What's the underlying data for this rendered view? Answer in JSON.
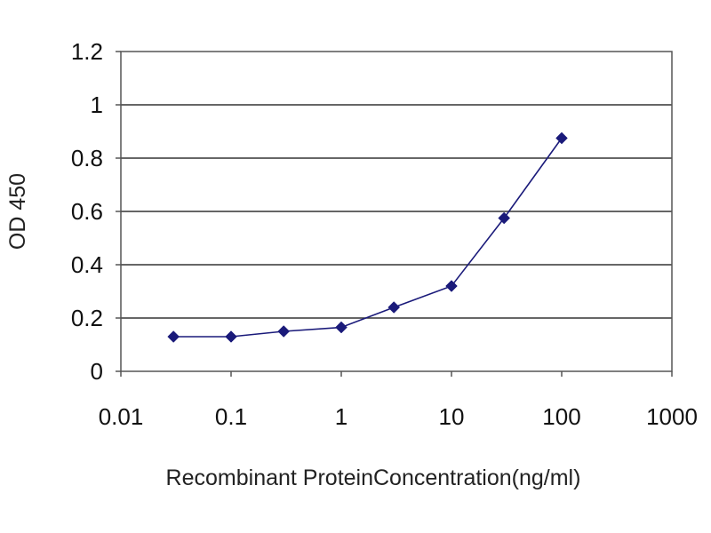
{
  "chart_data": {
    "type": "line",
    "title": "",
    "xlabel": "Recombinant ProteinConcentration(ng/ml)",
    "ylabel": "OD 450",
    "x_scale": "log",
    "xlim": [
      0.01,
      1000
    ],
    "ylim": [
      0,
      1.2
    ],
    "x_ticks": [
      0.01,
      0.1,
      1,
      10,
      100,
      1000
    ],
    "x_tick_labels": [
      "0.01",
      "0.1",
      "1",
      "10",
      "100",
      "1000"
    ],
    "y_ticks": [
      0,
      0.2,
      0.4,
      0.6,
      0.8,
      1,
      1.2
    ],
    "y_tick_labels": [
      "0",
      "0.2",
      "0.4",
      "0.6",
      "0.8",
      "1",
      "1.2"
    ],
    "grid": "horizontal",
    "legend": "none",
    "series": [
      {
        "x": [
          0.03,
          0.1,
          0.3,
          1,
          3,
          10,
          30,
          100
        ],
        "y": [
          0.13,
          0.13,
          0.15,
          0.165,
          0.24,
          0.32,
          0.575,
          0.875
        ],
        "color": "#1a1a7a",
        "marker": "diamond"
      }
    ],
    "colors": {
      "plot_border": "#555555",
      "grid": "#333333",
      "series": "#1a1a7a"
    }
  }
}
